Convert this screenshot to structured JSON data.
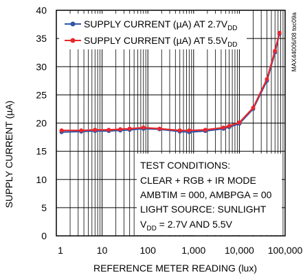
{
  "chart_data": {
    "type": "line",
    "xlabel": "REFERENCE METER READING (lux)",
    "ylabel": "SUPPLY CURRENT (µA)",
    "xscale": "log",
    "xlim": [
      1,
      100000
    ],
    "ylim": [
      0,
      40
    ],
    "grid": true,
    "legend_placement": "top-left",
    "x_ticks": [
      1,
      10,
      100,
      1000,
      10000,
      100000
    ],
    "x_tick_labels": [
      "1",
      "10",
      "100",
      "1,000",
      "10,000",
      "100,000"
    ],
    "y_ticks": [
      0,
      5,
      10,
      15,
      20,
      25,
      30,
      35,
      40
    ],
    "y_tick_labels": [
      "0",
      "5",
      "10",
      "15",
      "20",
      "25",
      "30",
      "35",
      "40"
    ],
    "figure_id": "MAX44006/08 toc09a",
    "series": [
      {
        "name": "SUPPLY CURRENT (µA) AT 2.7VDD",
        "name_main": "SUPPLY CURRENT (µA) AT 2.7V",
        "name_sub": "DD",
        "color": "#2b56a8",
        "x": [
          1.3,
          3.5,
          7,
          14,
          25,
          40,
          80,
          180,
          500,
          800,
          1800,
          4500,
          6000,
          10000,
          20000,
          40000,
          60000,
          75000
        ],
        "y": [
          18.4,
          18.5,
          18.6,
          18.6,
          18.7,
          18.8,
          19.0,
          18.9,
          18.5,
          18.4,
          18.6,
          19.0,
          19.3,
          19.9,
          22.5,
          27.5,
          32.5,
          35.8
        ]
      },
      {
        "name": "SUPPLY CURRENT (µA) AT 5.5VDD",
        "name_main": "SUPPLY CURRENT (µA) AT 5.5V",
        "name_sub": "DD",
        "color": "#e8262c",
        "x": [
          1.3,
          3.5,
          7,
          14,
          25,
          40,
          80,
          180,
          500,
          800,
          1800,
          4500,
          6000,
          10000,
          20000,
          40000,
          60000,
          75000
        ],
        "y": [
          18.7,
          18.7,
          18.8,
          18.8,
          18.9,
          19.0,
          19.2,
          19.0,
          18.7,
          18.7,
          18.8,
          19.2,
          19.5,
          20.1,
          22.7,
          27.8,
          32.8,
          36.0
        ]
      }
    ],
    "annotation": {
      "lines": [
        "TEST CONDITIONS:",
        "CLEAR + RGB + IR MODE",
        "AMBTIM = 000, AMBPGA = 00",
        "LIGHT SOURCE: SUNLIGHT"
      ],
      "last_main": "V",
      "last_sub": "DD",
      "last_rest": " = 2.7V AND 5.5V"
    }
  }
}
